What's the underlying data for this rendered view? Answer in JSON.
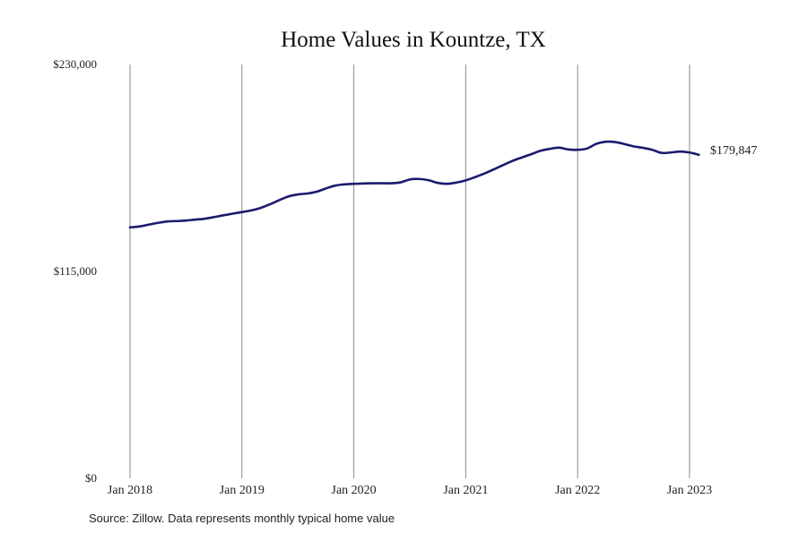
{
  "colors": {
    "line": "#1b1b6e",
    "grid": "#8a8a8a",
    "text": "#222222",
    "background": "#ffffff"
  },
  "source_note": "Source: Zillow. Data represents monthly typical home value",
  "chart_data": {
    "type": "line",
    "title": "Home Values in Kountze, TX",
    "xlabel": "",
    "ylabel": "",
    "ylim": [
      0,
      230000
    ],
    "yticks": [
      {
        "value": 0,
        "label": "$0"
      },
      {
        "value": 115000,
        "label": "$115,000"
      },
      {
        "value": 230000,
        "label": "$230,000"
      }
    ],
    "xticks": [
      {
        "value": "2018-01",
        "label": "Jan 2018"
      },
      {
        "value": "2019-01",
        "label": "Jan 2019"
      },
      {
        "value": "2020-01",
        "label": "Jan 2020"
      },
      {
        "value": "2021-01",
        "label": "Jan 2021"
      },
      {
        "value": "2022-01",
        "label": "Jan 2022"
      },
      {
        "value": "2023-01",
        "label": "Jan 2023"
      }
    ],
    "xlim": [
      "2018-01",
      "2023-02"
    ],
    "grid": {
      "vertical": true,
      "horizontal": false
    },
    "legend": "none",
    "end_label": "$179,847",
    "series": [
      {
        "x": [
          "2018-01",
          "2018-02",
          "2018-03",
          "2018-04",
          "2018-05",
          "2018-06",
          "2018-07",
          "2018-08",
          "2018-09",
          "2018-10",
          "2018-11",
          "2018-12",
          "2019-01",
          "2019-02",
          "2019-03",
          "2019-04",
          "2019-05",
          "2019-06",
          "2019-07",
          "2019-08",
          "2019-09",
          "2019-10",
          "2019-11",
          "2019-12",
          "2020-01",
          "2020-02",
          "2020-03",
          "2020-04",
          "2020-05",
          "2020-06",
          "2020-07",
          "2020-08",
          "2020-09",
          "2020-10",
          "2020-11",
          "2020-12",
          "2021-01",
          "2021-02",
          "2021-03",
          "2021-04",
          "2021-05",
          "2021-06",
          "2021-07",
          "2021-08",
          "2021-09",
          "2021-10",
          "2021-11",
          "2021-12",
          "2022-01",
          "2022-02",
          "2022-03",
          "2022-04",
          "2022-05",
          "2022-06",
          "2022-07",
          "2022-08",
          "2022-09",
          "2022-10",
          "2022-11",
          "2022-12",
          "2023-01",
          "2023-02"
        ],
        "y": [
          139500,
          140000,
          141000,
          142000,
          142800,
          143000,
          143300,
          143800,
          144300,
          145200,
          146200,
          147100,
          148000,
          148900,
          150300,
          152300,
          154600,
          156700,
          157800,
          158300,
          159300,
          161100,
          162700,
          163400,
          163700,
          163900,
          164000,
          164000,
          164000,
          164500,
          166100,
          166400,
          165700,
          164200,
          163700,
          164400,
          165600,
          167400,
          169400,
          171700,
          174100,
          176400,
          178300,
          180100,
          182000,
          183100,
          183800,
          182800,
          182600,
          183300,
          185900,
          187100,
          186900,
          185800,
          184500,
          183700,
          182600,
          180900,
          181100,
          181600,
          181100,
          179847
        ]
      }
    ]
  }
}
